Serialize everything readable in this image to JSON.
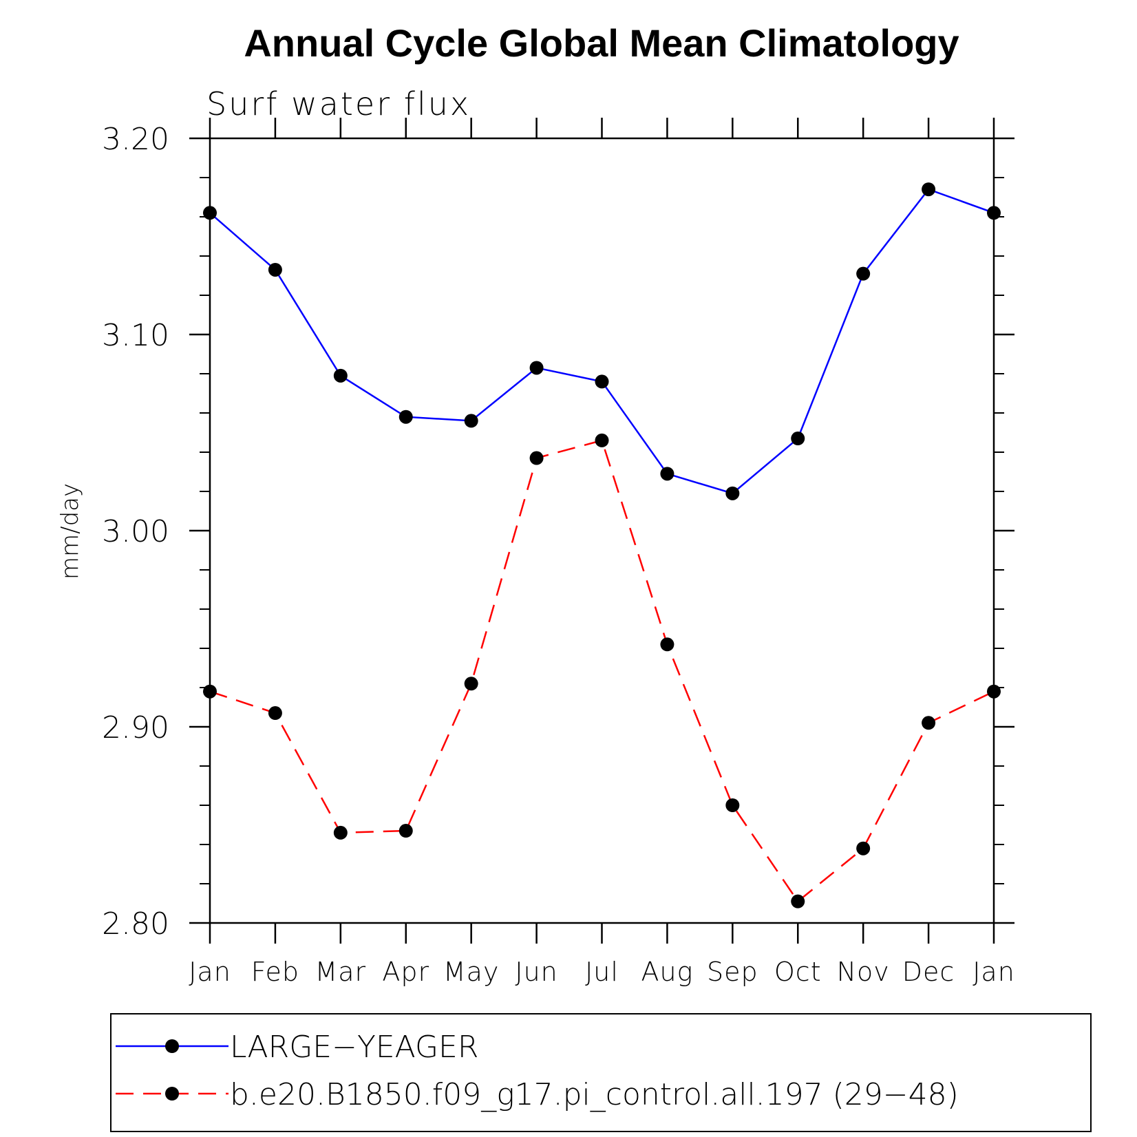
{
  "chart_data": {
    "type": "line",
    "title": "Annual Cycle Global Mean Climatology",
    "subtitle": "Surf water flux",
    "xlabel": "",
    "ylabel": "mm/day",
    "categories": [
      "Jan",
      "Feb",
      "Mar",
      "Apr",
      "May",
      "Jun",
      "Jul",
      "Aug",
      "Sep",
      "Oct",
      "Nov",
      "Dec",
      "Jan"
    ],
    "ylim": [
      2.8,
      3.2
    ],
    "yticks": [
      "2.80",
      "2.90",
      "3.00",
      "3.10",
      "3.20"
    ],
    "ytick_values": [
      2.8,
      2.9,
      3.0,
      3.1,
      3.2
    ],
    "minor_tick_step": 0.02,
    "grid": false,
    "legend_position": "bottom",
    "series": [
      {
        "name": "LARGE−YEAGER",
        "color": "#0000ff",
        "dash": "solid",
        "marker": "circle",
        "values": [
          3.162,
          3.133,
          3.079,
          3.058,
          3.056,
          3.083,
          3.076,
          3.029,
          3.019,
          3.047,
          3.131,
          3.174,
          3.162
        ]
      },
      {
        "name": "b.e20.B1850.f09_g17.pi_control.all.197 (29−48)",
        "color": "#ff0000",
        "dash": "dashed",
        "marker": "circle",
        "values": [
          2.918,
          2.907,
          2.846,
          2.847,
          2.922,
          3.037,
          3.046,
          2.942,
          2.86,
          2.811,
          2.838,
          2.902,
          2.918
        ]
      }
    ]
  }
}
